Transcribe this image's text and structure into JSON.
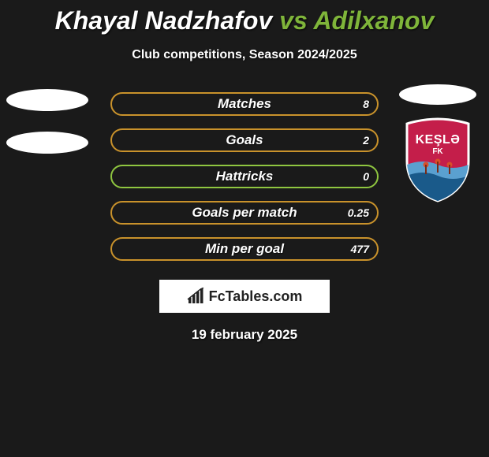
{
  "header": {
    "player1": "Khayal Nadzhafov",
    "vs": "vs",
    "player2": "Adilxanov",
    "subtitle": "Club competitions, Season 2024/2025"
  },
  "stats": [
    {
      "label": "Matches",
      "right_value": "8",
      "border_color": "#c9922b"
    },
    {
      "label": "Goals",
      "right_value": "2",
      "border_color": "#c9922b"
    },
    {
      "label": "Hattricks",
      "right_value": "0",
      "border_color": "#8fc640"
    },
    {
      "label": "Goals per match",
      "right_value": "0.25",
      "border_color": "#c9922b"
    },
    {
      "label": "Min per goal",
      "right_value": "477",
      "border_color": "#c9922b"
    }
  ],
  "crest": {
    "name": "KEŞLƏ",
    "sub": "FK",
    "bg_color": "#c41e4a",
    "border_color": "#ffffff",
    "wave_top": "#5aa0d0",
    "wave_bottom": "#1a5a8a"
  },
  "brand": "FcTables.com",
  "date": "19 february 2025",
  "colors": {
    "page_bg": "#1a1a1a",
    "title_white": "#ffffff",
    "title_green": "#7fb53a",
    "bar_text": "#ffffff"
  }
}
